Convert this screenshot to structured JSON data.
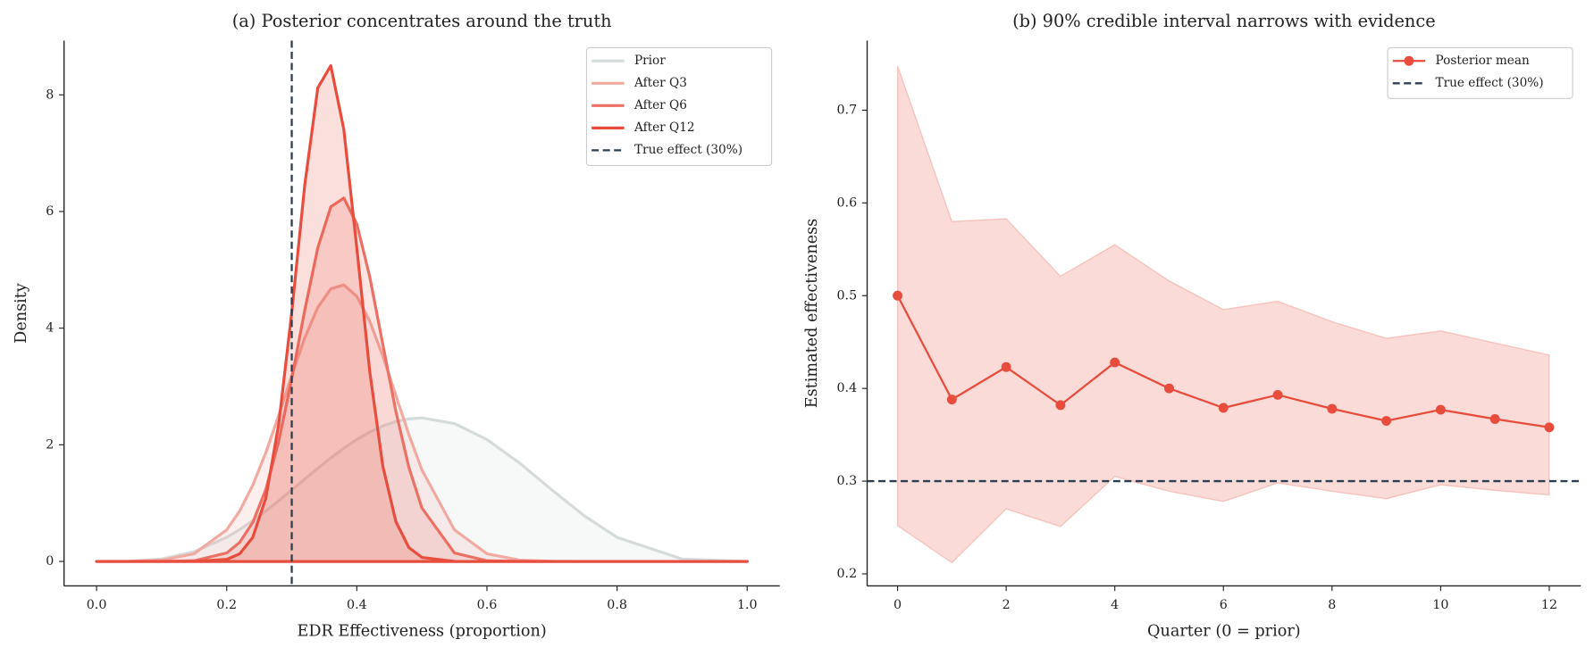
{
  "chart_data": [
    {
      "type": "line",
      "title": "(a) Posterior concentrates around the truth",
      "xlabel": "EDR Effectiveness (proportion)",
      "ylabel": "Density",
      "x": [
        0,
        0.05,
        0.1,
        0.15,
        0.2,
        0.22,
        0.24,
        0.26,
        0.28,
        0.3,
        0.32,
        0.34,
        0.36,
        0.38,
        0.4,
        0.42,
        0.44,
        0.46,
        0.48,
        0.5,
        0.55,
        0.6,
        0.65,
        0.7,
        0.75,
        0.8,
        0.9,
        1.0
      ],
      "series": [
        {
          "name": "Prior",
          "color": "#d5dbdb",
          "fill": true,
          "values": [
            0,
            0.003,
            0.041,
            0.167,
            0.413,
            0.546,
            0.697,
            0.863,
            1.041,
            1.225,
            1.412,
            1.597,
            1.775,
            1.941,
            2.09,
            2.218,
            2.322,
            2.399,
            2.445,
            2.461,
            2.364,
            2.09,
            1.688,
            1.225,
            0.779,
            0.413,
            0.041,
            0
          ]
        },
        {
          "name": "After Q3",
          "color": "#f1a9a0",
          "fill": true,
          "values": [
            0,
            0.003,
            0.022,
            0.132,
            0.542,
            0.866,
            1.306,
            1.861,
            2.506,
            3.189,
            3.833,
            4.355,
            4.675,
            4.741,
            4.544,
            4.115,
            3.521,
            2.847,
            2.175,
            1.57,
            0.542,
            0.132,
            0.022,
            0.003,
            0,
            0,
            0,
            0
          ]
        },
        {
          "name": "After Q6",
          "color": "#ec7063",
          "fill": true,
          "values": [
            0,
            0,
            0.001,
            0.012,
            0.145,
            0.327,
            0.666,
            1.231,
            2.062,
            3.133,
            4.31,
            5.377,
            6.08,
            6.231,
            5.788,
            4.874,
            3.719,
            2.573,
            1.613,
            0.917,
            0.145,
            0.012,
            0.001,
            0,
            0,
            0,
            0,
            0
          ]
        },
        {
          "name": "After Q12",
          "color": "#e74c3c",
          "fill": true,
          "values": [
            0,
            0,
            0,
            0.001,
            0.035,
            0.131,
            0.412,
            1.08,
            2.355,
            4.273,
            6.456,
            8.12,
            8.501,
            7.409,
            5.375,
            3.246,
            1.632,
            0.683,
            0.238,
            0.069,
            0.001,
            0,
            0,
            0,
            0,
            0,
            0,
            0
          ]
        }
      ],
      "reference": {
        "name": "True effect (30%)",
        "axis": "x",
        "value": 0.3,
        "color": "#2c3e50"
      },
      "xlim": [
        -0.05,
        1.05
      ],
      "ylim": [
        -0.42,
        8.93
      ],
      "xticks": [
        {
          "value": 0,
          "label": "0.0"
        },
        0.2,
        0.4,
        0.6,
        0.8,
        {
          "value": 1,
          "label": "1.0"
        }
      ],
      "yticks": [
        0,
        2,
        4,
        6,
        8
      ],
      "legend": "upper right"
    },
    {
      "type": "line",
      "title": "(b) 90% credible interval narrows with evidence",
      "xlabel": "Quarter (0 = prior)",
      "ylabel": "Estimated effectiveness",
      "x": [
        0,
        1,
        2,
        3,
        4,
        5,
        6,
        7,
        8,
        9,
        10,
        11,
        12
      ],
      "series": [
        {
          "name": "Posterior mean",
          "color": "#e74c3c",
          "marker": "o",
          "values": [
            0.5,
            0.388,
            0.423,
            0.382,
            0.428,
            0.4,
            0.379,
            0.393,
            0.378,
            0.365,
            0.377,
            0.367,
            0.358
          ]
        }
      ],
      "interval": {
        "color": "#e74c3c",
        "lower": [
          0.252,
          0.212,
          0.27,
          0.251,
          0.305,
          0.289,
          0.278,
          0.298,
          0.289,
          0.281,
          0.296,
          0.29,
          0.285
        ],
        "upper": [
          0.748,
          0.58,
          0.583,
          0.521,
          0.555,
          0.516,
          0.485,
          0.494,
          0.472,
          0.454,
          0.462,
          0.449,
          0.436
        ]
      },
      "reference": {
        "name": "True effect (30%)",
        "axis": "y",
        "value": 0.3,
        "color": "#2c3e50"
      },
      "xlim": [
        -0.56,
        12.58
      ],
      "ylim": [
        0.187,
        0.775
      ],
      "xticks": [
        0,
        2,
        4,
        6,
        8,
        10,
        12
      ],
      "yticks": [
        0.2,
        0.3,
        0.4,
        0.5,
        0.6,
        0.7
      ],
      "legend": "upper right"
    }
  ]
}
